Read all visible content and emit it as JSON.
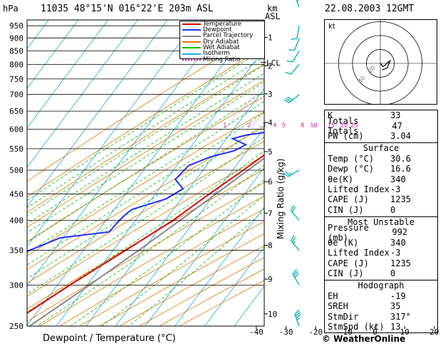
{
  "header": {
    "left": "11035  48°15'N  016°22'E   203m  ASL",
    "right": "22.08.2003  12GMT",
    "hpa": "hPa",
    "km": "km",
    "asl": "ASL"
  },
  "colors": {
    "temperature": "#dd0000",
    "dewpoint": "#2233ff",
    "parcel": "#888888",
    "dry_adiabat": "#e07800",
    "wet_adiabat": "#00bb00",
    "isotherm": "#22aadd",
    "mixing_ratio": "#dd00aa",
    "wind": "#00b0b0"
  },
  "legend": [
    {
      "label": "Temperature",
      "color": "#dd0000",
      "style": "solid"
    },
    {
      "label": "Dewpoint",
      "color": "#2233ff",
      "style": "solid"
    },
    {
      "label": "Parcel Trajectory",
      "color": "#888888",
      "style": "solid"
    },
    {
      "label": "Dry Adiabat",
      "color": "#e07800",
      "style": "solid"
    },
    {
      "label": "Wet Adiabat",
      "color": "#00bb00",
      "style": "solid"
    },
    {
      "label": "Isotherm",
      "color": "#22aadd",
      "style": "solid"
    },
    {
      "label": "Mixing Ratio",
      "color": "#dd00aa",
      "style": "dotted"
    }
  ],
  "chart_data": {
    "type": "line",
    "title": "11035  48°15'N  016°22'E   203m  ASL",
    "xlabel": "Dewpoint / Temperature (°C)",
    "ylabel": "hPa",
    "secondary_ylabel": "Mixing Ratio (g/kg)",
    "xlim": [
      -40,
      40
    ],
    "ylim": [
      975,
      250
    ],
    "pressure_ticks": [
      250,
      300,
      350,
      400,
      450,
      500,
      550,
      600,
      650,
      700,
      750,
      800,
      850,
      900,
      950
    ],
    "temp_ticks": [
      -40,
      -30,
      -20,
      -10,
      0,
      10,
      20,
      30
    ],
    "km_ticks": [
      {
        "km": 1,
        "p": 902
      },
      {
        "km": 2,
        "p": 795
      },
      {
        "km": 3,
        "p": 702
      },
      {
        "km": 4,
        "p": 618
      },
      {
        "km": 5,
        "p": 543
      },
      {
        "km": 6,
        "p": 475
      },
      {
        "km": 7,
        "p": 413
      },
      {
        "km": 8,
        "p": 358
      },
      {
        "km": 9,
        "p": 308
      },
      {
        "km": 10,
        "p": 264
      }
    ],
    "lcl": {
      "label": "LCL",
      "p": 807
    },
    "mixing_ratio_labels": [
      {
        "label": "1",
        "w": 1
      },
      {
        "label": "2",
        "w": 2
      },
      {
        "label": "3",
        "w": 3
      },
      {
        "label": "4",
        "w": 4
      },
      {
        "label": "5",
        "w": 5
      },
      {
        "label": "8",
        "w": 8
      },
      {
        "label": "10",
        "w": 10
      },
      {
        "label": "15",
        "w": 15
      },
      {
        "label": "20",
        "w": 20
      },
      {
        "label": "25",
        "w": 25
      }
    ],
    "series": [
      {
        "name": "Temperature",
        "points": [
          [
            980,
            30.6
          ],
          [
            950,
            27.4
          ],
          [
            900,
            23.2
          ],
          [
            850,
            19.2
          ],
          [
            820,
            16.6
          ],
          [
            800,
            17.2
          ],
          [
            750,
            14.2
          ],
          [
            700,
            10.4
          ],
          [
            650,
            7.0
          ],
          [
            620,
            4.6
          ],
          [
            600,
            2.0
          ],
          [
            550,
            -1.8
          ],
          [
            500,
            -6.4
          ],
          [
            450,
            -11.8
          ],
          [
            400,
            -17.4
          ],
          [
            350,
            -25.8
          ],
          [
            300,
            -35.8
          ],
          [
            250,
            -46.5
          ]
        ]
      },
      {
        "name": "Dewpoint",
        "points": [
          [
            980,
            16.6
          ],
          [
            950,
            14.8
          ],
          [
            900,
            14.2
          ],
          [
            850,
            13.4
          ],
          [
            820,
            12.6
          ],
          [
            800,
            6.4
          ],
          [
            750,
            4.6
          ],
          [
            700,
            2.8
          ],
          [
            660,
            -0.2
          ],
          [
            620,
            -1.6
          ],
          [
            600,
            -2.4
          ],
          [
            590,
            -9.6
          ],
          [
            585,
            -14.0
          ],
          [
            575,
            -18.0
          ],
          [
            560,
            -12.0
          ],
          [
            545,
            -14.4
          ],
          [
            530,
            -21.0
          ],
          [
            510,
            -26.0
          ],
          [
            480,
            -27.0
          ],
          [
            460,
            -22.0
          ],
          [
            440,
            -25.2
          ],
          [
            420,
            -34.0
          ],
          [
            410,
            -35.0
          ],
          [
            395,
            -35.6
          ],
          [
            380,
            -36.0
          ],
          [
            370,
            -51.0
          ],
          [
            340,
            -62.0
          ],
          [
            300,
            -66.0
          ],
          [
            290,
            -70.0
          ],
          [
            280,
            -72.0
          ],
          [
            270,
            -62.0
          ],
          [
            260,
            -72.0
          ],
          [
            250,
            -66.0
          ]
        ]
      },
      {
        "name": "Parcel Trajectory",
        "points": [
          [
            980,
            30.6
          ],
          [
            950,
            27.8
          ],
          [
            900,
            23.4
          ],
          [
            850,
            19.4
          ],
          [
            807,
            15.8
          ],
          [
            750,
            13.2
          ],
          [
            700,
            10.4
          ],
          [
            650,
            7.2
          ],
          [
            600,
            3.6
          ],
          [
            550,
            -0.4
          ],
          [
            500,
            -4.8
          ],
          [
            450,
            -9.6
          ],
          [
            400,
            -15.0
          ],
          [
            350,
            -21.4
          ],
          [
            300,
            -29.2
          ],
          [
            250,
            -39.0
          ]
        ]
      }
    ]
  },
  "winds": [
    {
      "p": 950,
      "dir": 190,
      "kt": 10
    },
    {
      "p": 900,
      "dir": 200,
      "kt": 10
    },
    {
      "p": 850,
      "dir": 210,
      "kt": 10
    },
    {
      "p": 800,
      "dir": 220,
      "kt": 10
    },
    {
      "p": 700,
      "dir": 230,
      "kt": 30
    },
    {
      "p": 500,
      "dir": 240,
      "kt": 25
    },
    {
      "p": 400,
      "dir": 320,
      "kt": 20
    },
    {
      "p": 350,
      "dir": 320,
      "kt": 25
    },
    {
      "p": 300,
      "dir": 330,
      "kt": 30
    },
    {
      "p": 250,
      "dir": 340,
      "kt": 35
    },
    {
      "p": 200,
      "dir": 340,
      "kt": 40
    }
  ],
  "hodograph": {
    "label": "kt",
    "ring_labels": [
      "20",
      "40"
    ],
    "points": [
      [
        0.0,
        0.0
      ],
      [
        3.0,
        -4.0
      ],
      [
        6.0,
        -2.0
      ],
      [
        9.0,
        1.0
      ],
      [
        12.0,
        3.0
      ],
      [
        8.0,
        -6.0
      ],
      [
        2.0,
        -8.0
      ]
    ]
  },
  "indices": [
    {
      "label": "K",
      "value": "33"
    },
    {
      "label": "Totals Totals",
      "value": "47"
    },
    {
      "label": "PW (cm)",
      "value": "3.04"
    }
  ],
  "surface": {
    "title": "Surface",
    "rows": [
      {
        "label": "Temp (°C)",
        "value": "30.6"
      },
      {
        "label": "Dewp (°C)",
        "value": "16.6"
      },
      {
        "label": "θe(K)",
        "value": "340"
      },
      {
        "label": "Lifted Index",
        "value": "-3"
      },
      {
        "label": "CAPE (J)",
        "value": "1235"
      },
      {
        "label": "CIN (J)",
        "value": "0"
      }
    ]
  },
  "most_unstable": {
    "title": "Most Unstable",
    "rows": [
      {
        "label": "Pressure (mb)",
        "value": "992"
      },
      {
        "label": "θe (K)",
        "value": "340"
      },
      {
        "label": "Lifted Index",
        "value": "-3"
      },
      {
        "label": "CAPE (J)",
        "value": "1235"
      },
      {
        "label": "CIN (J)",
        "value": "0"
      }
    ]
  },
  "hodograph_stats": {
    "title": "Hodograph",
    "rows": [
      {
        "label": "EH",
        "value": "-19"
      },
      {
        "label": "SREH",
        "value": "35"
      },
      {
        "label": "StmDir",
        "value": "317°"
      },
      {
        "label": "StmSpd (kt)",
        "value": "13"
      }
    ]
  },
  "copyright": "© WeatherOnline"
}
